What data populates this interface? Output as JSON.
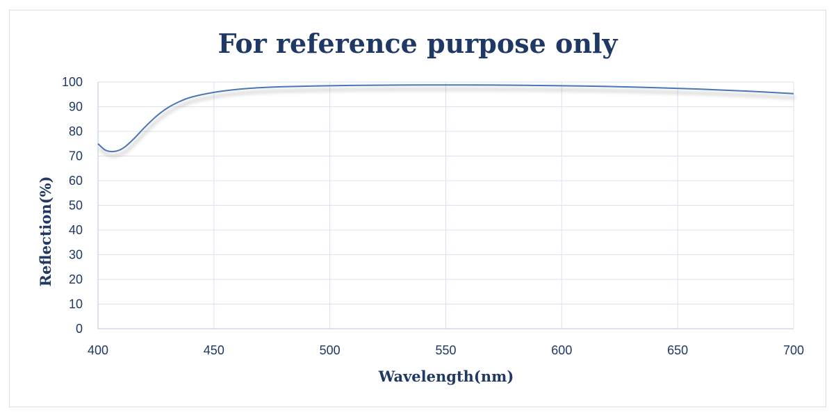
{
  "chart_data": {
    "type": "line",
    "title": "For reference purpose only",
    "xlabel": "Wavelength(nm)",
    "ylabel": "Reflection(%)",
    "xlim": [
      400,
      700
    ],
    "ylim": [
      0,
      100
    ],
    "x_ticks": [
      400,
      450,
      500,
      550,
      600,
      650,
      700
    ],
    "y_ticks": [
      0,
      10,
      20,
      30,
      40,
      50,
      60,
      70,
      80,
      90,
      100
    ],
    "grid": true,
    "legend": "none",
    "line_color": "#4a76b5",
    "grid_color": "#d9e2ef",
    "text_color": "#1f3864",
    "series": [
      {
        "x": [
          400,
          403,
          406,
          409,
          412,
          416,
          420,
          425,
          430,
          435,
          440,
          450,
          460,
          470,
          480,
          500,
          520,
          540,
          560,
          580,
          600,
          620,
          640,
          660,
          680,
          700
        ],
        "values": [
          75,
          72.5,
          71.8,
          72.3,
          74,
          77.5,
          81.5,
          86,
          89.5,
          92,
          93.8,
          95.8,
          97,
          97.7,
          98.1,
          98.5,
          98.7,
          98.8,
          98.8,
          98.7,
          98.5,
          98.2,
          97.7,
          97.1,
          96.3,
          95.3
        ]
      }
    ]
  }
}
